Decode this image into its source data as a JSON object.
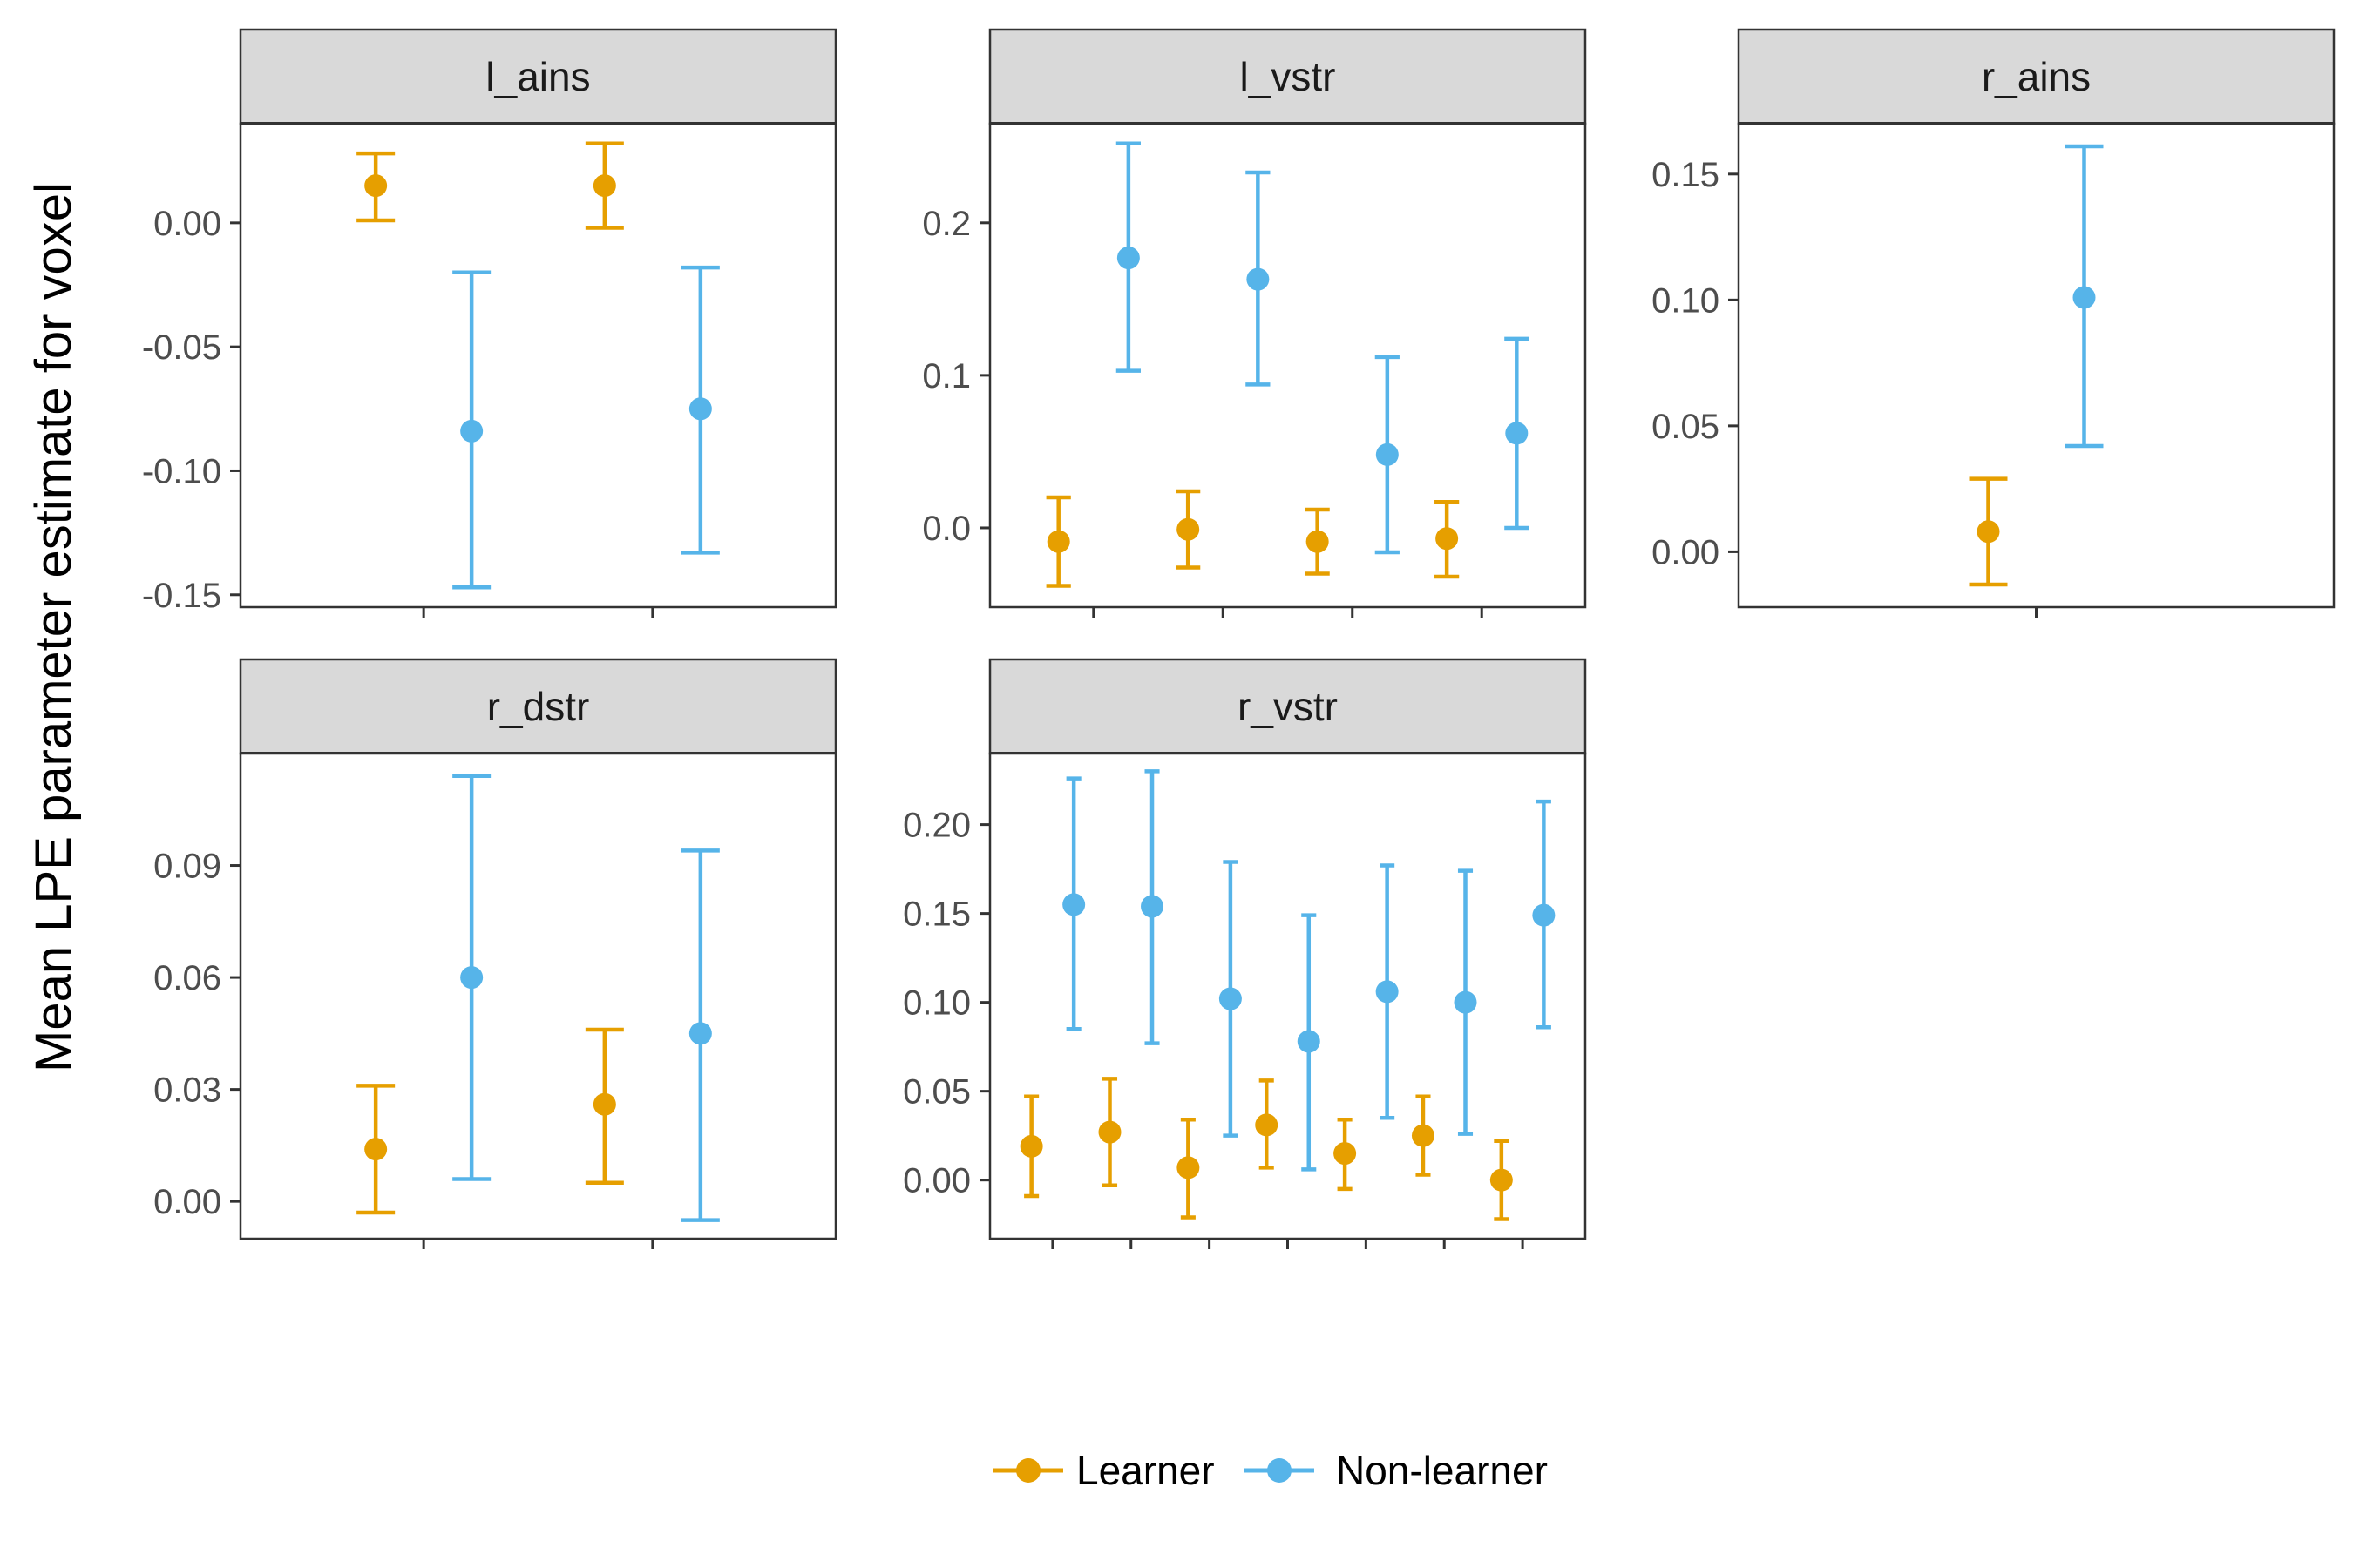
{
  "chart_data": {
    "type": "scatter",
    "subtype": "point-with-error-bars, faceted",
    "ylabel": "Mean LPE parameter estimate for voxel",
    "xlabel": "",
    "legend": {
      "placement": "bottom"
    },
    "grid": false,
    "series_styles": [
      {
        "name": "Learner",
        "color": "#E69F00"
      },
      {
        "name": "Non-learner",
        "color": "#56B4E9"
      }
    ],
    "facets": [
      {
        "label": "l_ains",
        "ylim": [
          -0.155,
          0.04
        ],
        "yticks": [
          0.0,
          -0.05,
          -0.1,
          -0.15
        ],
        "ytick_labels": [
          "0.00",
          "-0.05",
          "-0.10",
          "-0.15"
        ],
        "x_positions": [
          1,
          2
        ],
        "points": [
          {
            "x": 1,
            "series": "Learner",
            "y": 0.015,
            "ymin": 0.001,
            "ymax": 0.028
          },
          {
            "x": 1,
            "series": "Non-learner",
            "y": -0.084,
            "ymin": -0.147,
            "ymax": -0.02
          },
          {
            "x": 2,
            "series": "Learner",
            "y": 0.015,
            "ymin": -0.002,
            "ymax": 0.032
          },
          {
            "x": 2,
            "series": "Non-learner",
            "y": -0.075,
            "ymin": -0.133,
            "ymax": -0.018
          }
        ]
      },
      {
        "label": "l_vstr",
        "ylim": [
          -0.052,
          0.265
        ],
        "yticks": [
          0.2,
          0.1,
          0.0
        ],
        "ytick_labels": [
          "0.2",
          "0.1",
          "0.0"
        ],
        "x_positions": [
          1,
          2,
          3,
          4
        ],
        "points": [
          {
            "x": 1,
            "series": "Learner",
            "y": -0.009,
            "ymin": -0.038,
            "ymax": 0.02
          },
          {
            "x": 1,
            "series": "Non-learner",
            "y": 0.177,
            "ymin": 0.103,
            "ymax": 0.252
          },
          {
            "x": 2,
            "series": "Learner",
            "y": -0.001,
            "ymin": -0.026,
            "ymax": 0.024
          },
          {
            "x": 2,
            "series": "Non-learner",
            "y": 0.163,
            "ymin": 0.094,
            "ymax": 0.233
          },
          {
            "x": 3,
            "series": "Learner",
            "y": -0.009,
            "ymin": -0.03,
            "ymax": 0.012
          },
          {
            "x": 3,
            "series": "Non-learner",
            "y": 0.048,
            "ymin": -0.016,
            "ymax": 0.112
          },
          {
            "x": 4,
            "series": "Learner",
            "y": -0.007,
            "ymin": -0.032,
            "ymax": 0.017
          },
          {
            "x": 4,
            "series": "Non-learner",
            "y": 0.062,
            "ymin": 0.0,
            "ymax": 0.124
          }
        ]
      },
      {
        "label": "r_ains",
        "ylim": [
          -0.022,
          0.17
        ],
        "yticks": [
          0.15,
          0.1,
          0.05,
          0.0
        ],
        "ytick_labels": [
          "0.15",
          "0.10",
          "0.05",
          "0.00"
        ],
        "x_positions": [
          1
        ],
        "points": [
          {
            "x": 1,
            "series": "Learner",
            "y": 0.008,
            "ymin": -0.013,
            "ymax": 0.029
          },
          {
            "x": 1,
            "series": "Non-learner",
            "y": 0.101,
            "ymin": 0.042,
            "ymax": 0.161
          }
        ]
      },
      {
        "label": "r_dstr",
        "ylim": [
          -0.01,
          0.12
        ],
        "yticks": [
          0.09,
          0.06,
          0.03,
          0.0
        ],
        "ytick_labels": [
          "0.09",
          "0.06",
          "0.03",
          "0.00"
        ],
        "x_positions": [
          1,
          2
        ],
        "points": [
          {
            "x": 1,
            "series": "Learner",
            "y": 0.014,
            "ymin": -0.003,
            "ymax": 0.031
          },
          {
            "x": 1,
            "series": "Non-learner",
            "y": 0.06,
            "ymin": 0.006,
            "ymax": 0.114
          },
          {
            "x": 2,
            "series": "Learner",
            "y": 0.026,
            "ymin": 0.005,
            "ymax": 0.046
          },
          {
            "x": 2,
            "series": "Non-learner",
            "y": 0.045,
            "ymin": -0.005,
            "ymax": 0.094
          }
        ]
      },
      {
        "label": "r_vstr",
        "ylim": [
          -0.033,
          0.24
        ],
        "yticks": [
          0.2,
          0.15,
          0.1,
          0.05,
          0.0
        ],
        "ytick_labels": [
          "0.20",
          "0.15",
          "0.10",
          "0.05",
          "0.00"
        ],
        "x_positions": [
          1,
          2,
          3,
          4,
          5,
          6,
          7
        ],
        "points": [
          {
            "x": 1,
            "series": "Learner",
            "y": 0.019,
            "ymin": -0.009,
            "ymax": 0.047
          },
          {
            "x": 1,
            "series": "Non-learner",
            "y": 0.155,
            "ymin": 0.085,
            "ymax": 0.226
          },
          {
            "x": 2,
            "series": "Learner",
            "y": 0.027,
            "ymin": -0.003,
            "ymax": 0.057
          },
          {
            "x": 2,
            "series": "Non-learner",
            "y": 0.154,
            "ymin": 0.077,
            "ymax": 0.23
          },
          {
            "x": 3,
            "series": "Learner",
            "y": 0.007,
            "ymin": -0.021,
            "ymax": 0.034
          },
          {
            "x": 3,
            "series": "Non-learner",
            "y": 0.102,
            "ymin": 0.025,
            "ymax": 0.179
          },
          {
            "x": 4,
            "series": "Learner",
            "y": 0.031,
            "ymin": 0.007,
            "ymax": 0.056
          },
          {
            "x": 4,
            "series": "Non-learner",
            "y": 0.078,
            "ymin": 0.006,
            "ymax": 0.149
          },
          {
            "x": 5,
            "series": "Learner",
            "y": 0.015,
            "ymin": -0.005,
            "ymax": 0.034
          },
          {
            "x": 5,
            "series": "Non-learner",
            "y": 0.106,
            "ymin": 0.035,
            "ymax": 0.177
          },
          {
            "x": 6,
            "series": "Learner",
            "y": 0.025,
            "ymin": 0.003,
            "ymax": 0.047
          },
          {
            "x": 6,
            "series": "Non-learner",
            "y": 0.1,
            "ymin": 0.026,
            "ymax": 0.174
          },
          {
            "x": 7,
            "series": "Learner",
            "y": 0.0,
            "ymin": -0.022,
            "ymax": 0.022
          },
          {
            "x": 7,
            "series": "Non-learner",
            "y": 0.149,
            "ymin": 0.086,
            "ymax": 0.213
          }
        ]
      }
    ]
  }
}
